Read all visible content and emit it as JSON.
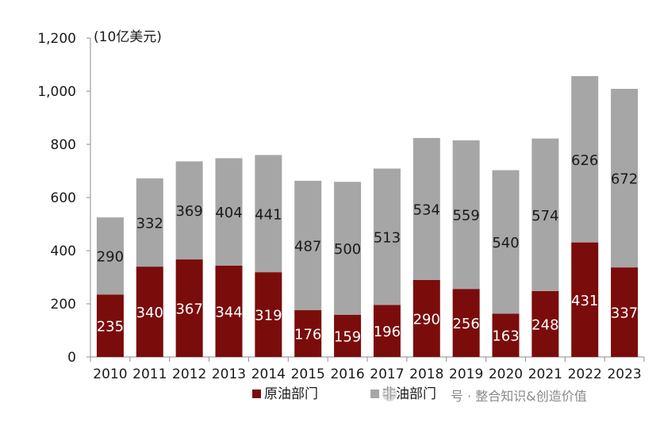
{
  "chart_data": {
    "type": "bar",
    "stacked": true,
    "unit_label": "(10亿美元)",
    "categories": [
      "2010",
      "2011",
      "2012",
      "2013",
      "2014",
      "2015",
      "2016",
      "2017",
      "2018",
      "2019",
      "2020",
      "2021",
      "2022",
      "2023"
    ],
    "series": [
      {
        "name": "原油部门",
        "color": "#7b0c0c",
        "values": [
          235,
          340,
          367,
          344,
          319,
          176,
          159,
          196,
          290,
          256,
          163,
          248,
          431,
          337
        ]
      },
      {
        "name": "非油部门",
        "color": "#a6a6a6",
        "values": [
          290,
          332,
          369,
          404,
          441,
          487,
          500,
          513,
          534,
          559,
          540,
          574,
          626,
          672
        ]
      }
    ],
    "ylim": [
      0,
      1200
    ],
    "yticks": [
      0,
      200,
      400,
      600,
      800,
      1000,
      1200
    ],
    "ytick_labels": [
      "0",
      "200",
      "400",
      "600",
      "800",
      "1,000",
      "1,200"
    ],
    "grid": false,
    "legend_position": "bottom-center"
  },
  "watermark": {
    "text": "号 · 整合知识&创造价值"
  }
}
